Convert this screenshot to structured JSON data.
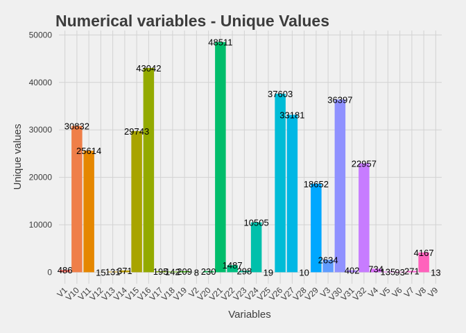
{
  "chart_data": {
    "type": "bar",
    "title": "Numerical variables - Unique Values",
    "x_label": "Variables",
    "y_label": "Unique values",
    "categories": [
      "V1",
      "V10",
      "V11",
      "V12",
      "V13",
      "V14",
      "V15",
      "V16",
      "V17",
      "V18",
      "V19",
      "V2",
      "V20",
      "V21",
      "V22",
      "V23",
      "V24",
      "V25",
      "V26",
      "V27",
      "V28",
      "V29",
      "V3",
      "V30",
      "V31",
      "V32",
      "V4",
      "V5",
      "V6",
      "V7",
      "V8",
      "V9"
    ],
    "values": [
      486,
      30832,
      25614,
      15,
      131,
      371,
      29743,
      43042,
      195,
      142,
      209,
      8,
      230,
      48511,
      1487,
      298,
      10505,
      19,
      37603,
      33181,
      10,
      18652,
      2634,
      36397,
      402,
      22957,
      734,
      135,
      93,
      271,
      4167,
      13
    ],
    "colors": [
      "#F8766D",
      "#EF7F49",
      "#E58700",
      "#D98E00",
      "#CB9600",
      "#BB9D00",
      "#A8A400",
      "#93AA00",
      "#7CAE00",
      "#5EB300",
      "#2EB600",
      "#00B81F",
      "#00BB4E",
      "#00BD6B",
      "#00BF83",
      "#00C098",
      "#00C0AB",
      "#00BFC4",
      "#00BCD6",
      "#00B7E5",
      "#00B0F3",
      "#00A7FF",
      "#619CFF",
      "#8F91FF",
      "#AE87FF",
      "#C77CFF",
      "#DB72FB",
      "#EB6AF0",
      "#F763E0",
      "#FD61D1",
      "#FF62BC",
      "#FF66A8"
    ],
    "ylim": [
      -2426,
      50937
    ],
    "yticks": [
      0,
      10000,
      20000,
      30000,
      40000,
      50000
    ],
    "grid": true
  }
}
